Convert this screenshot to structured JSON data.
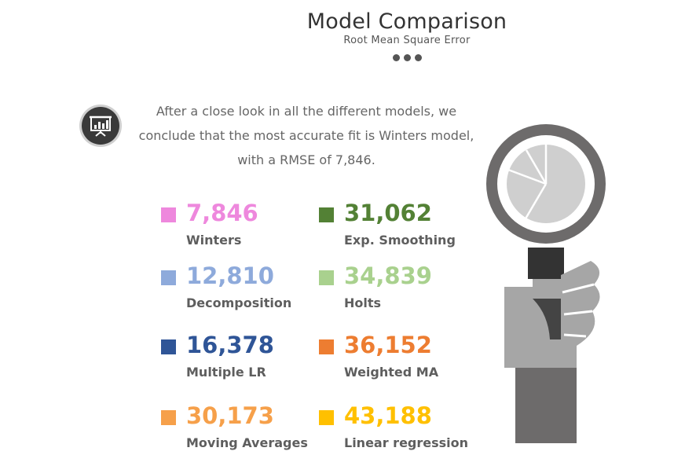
{
  "header": {
    "title": "Model Comparison",
    "subtitle": "Root Mean Square Error"
  },
  "intro": {
    "line1": "After a close look in all the different models, we",
    "line2": "conclude that the most accurate fit is Winters model,",
    "line3": "with a RMSE of 7,846.",
    "icon": "presentation-chart-icon"
  },
  "metrics": [
    {
      "value": "7,846",
      "label": "Winters",
      "color": "#ee88dd"
    },
    {
      "value": "12,810",
      "label": "Decomposition",
      "color": "#8eaadb"
    },
    {
      "value": "16,378",
      "label": "Multiple LR",
      "color": "#2f5597"
    },
    {
      "value": "30,173",
      "label": "Moving Averages",
      "color": "#f6a04a"
    },
    {
      "value": "31,062",
      "label": "Exp. Smoothing",
      "color": "#538135"
    },
    {
      "value": "34,839",
      "label": "Holts",
      "color": "#a9d18e"
    },
    {
      "value": "36,152",
      "label": "Weighted MA",
      "color": "#ed7d31"
    },
    {
      "value": "43,188",
      "label": "Linear regression",
      "color": "#ffc000"
    }
  ],
  "illustration": {
    "icon": "magnifier-hand-pie-icon",
    "colors": {
      "ring": "#6d6b6b",
      "lens": "#ffffff",
      "pie": "#cfcfcf",
      "hand": "#a6a6a6",
      "sleeve": "#6d6b6b"
    }
  }
}
